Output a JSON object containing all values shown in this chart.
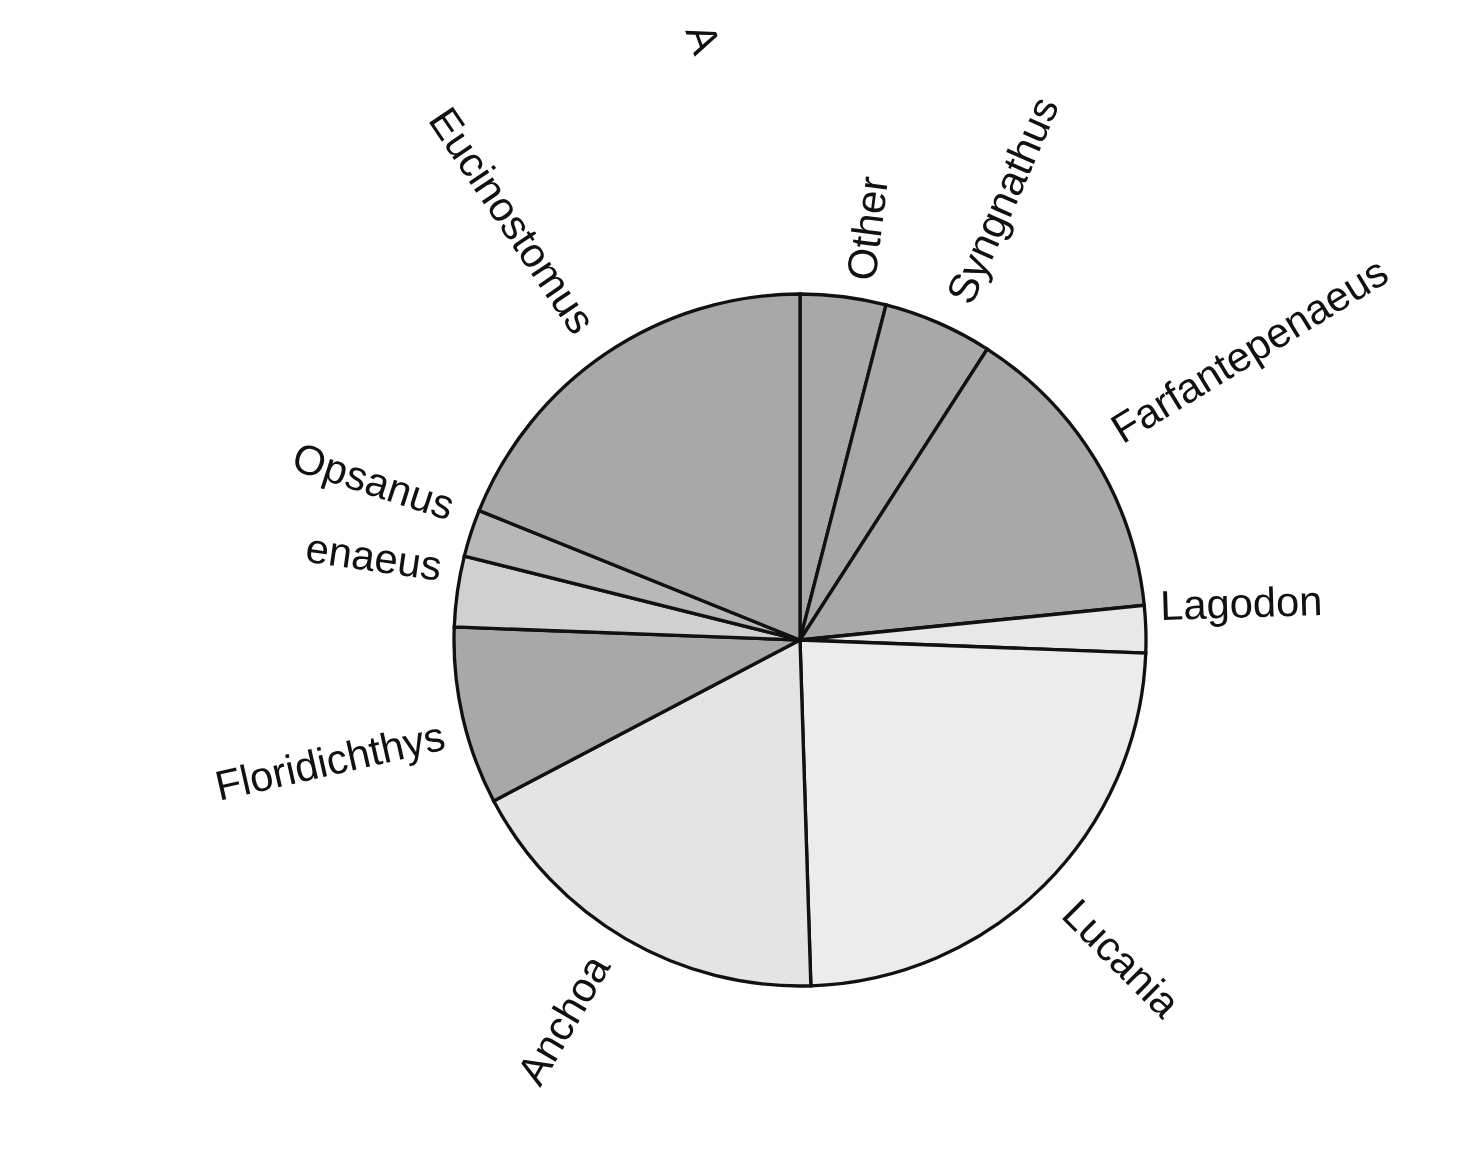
{
  "chart_data": {
    "type": "pie",
    "categories": [
      "Other",
      "Syngnathus",
      "Farfantepenaeus",
      "Lagodon",
      "Lucania",
      "Anchoa",
      "Floridichthys",
      "enaeus",
      "Opsanus",
      "Eucinostomus"
    ],
    "values": [
      4.0,
      5.1,
      14.3,
      2.2,
      23.9,
      17.8,
      8.3,
      3.3,
      2.2,
      18.9
    ],
    "colors": [
      "#a8a8a8",
      "#a8a8a8",
      "#a8a8a8",
      "#e8e8e8",
      "#ececec",
      "#e4e4e4",
      "#a8a8a8",
      "#d0d0d0",
      "#b8b8b8",
      "#a8a8a8"
    ],
    "annotations": [
      "A"
    ]
  }
}
